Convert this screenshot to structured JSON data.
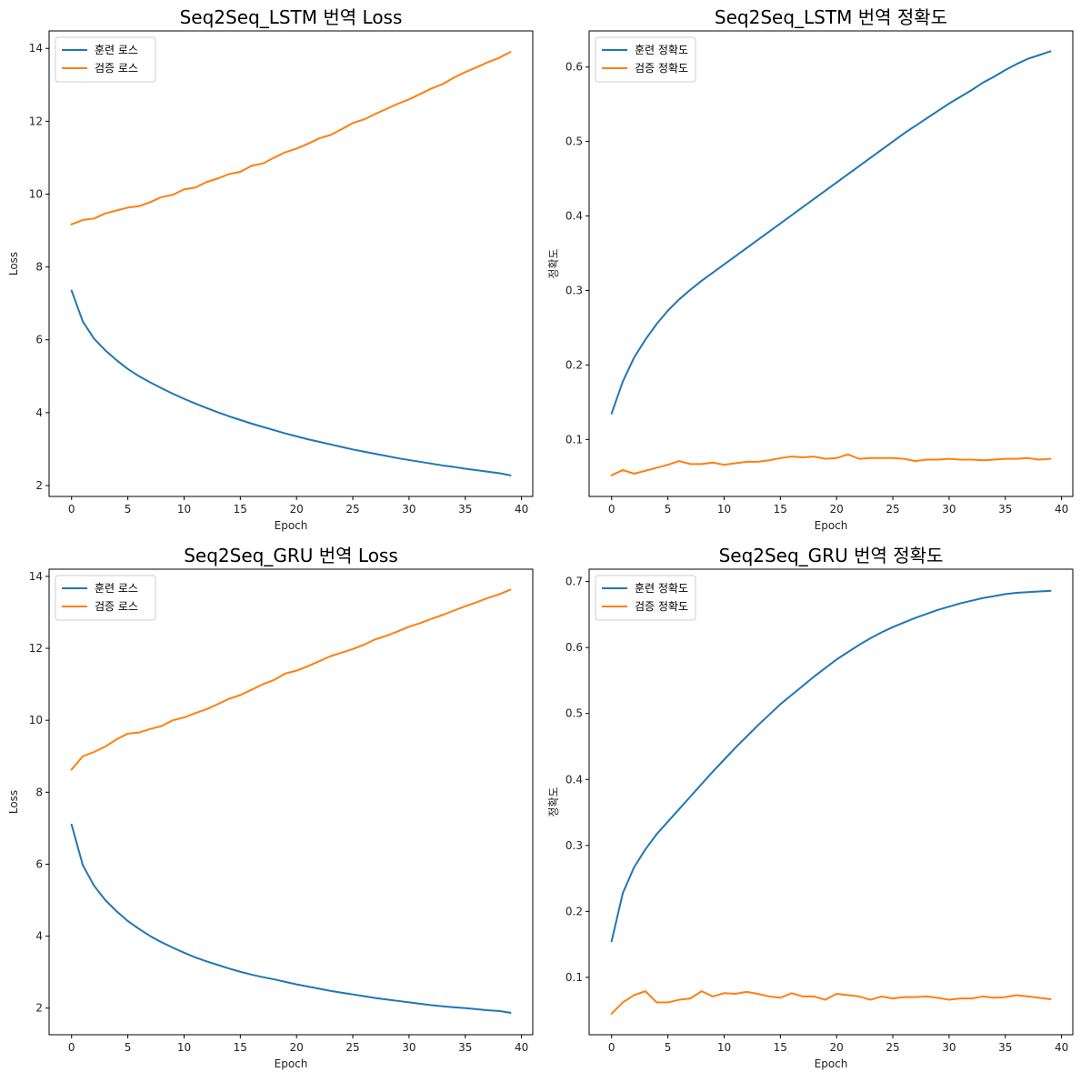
{
  "chart_data": [
    {
      "type": "line",
      "title": "Seq2Seq_LSTM 번역 Loss",
      "xlabel": "Epoch",
      "ylabel": "Loss",
      "xlim": [
        -2,
        41
      ],
      "ylim": [
        1.7,
        14.48
      ],
      "xticks": [
        0,
        5,
        10,
        15,
        20,
        25,
        30,
        35,
        40
      ],
      "yticks": [
        2,
        4,
        6,
        8,
        10,
        12,
        14
      ],
      "ytick_decimals": 0,
      "grid": false,
      "legend_position": "upper-left",
      "x": [
        0,
        1,
        2,
        3,
        4,
        5,
        6,
        7,
        8,
        9,
        10,
        11,
        12,
        13,
        14,
        15,
        16,
        17,
        18,
        19,
        20,
        21,
        22,
        23,
        24,
        25,
        26,
        27,
        28,
        29,
        30,
        31,
        32,
        33,
        34,
        35,
        36,
        37,
        38,
        39
      ],
      "series": [
        {
          "name": "훈련 로스",
          "color": "#1f77b4",
          "values": [
            7.35,
            6.5,
            6.03,
            5.71,
            5.44,
            5.2,
            5.0,
            4.83,
            4.67,
            4.52,
            4.38,
            4.25,
            4.13,
            4.01,
            3.9,
            3.8,
            3.7,
            3.61,
            3.52,
            3.43,
            3.35,
            3.27,
            3.2,
            3.13,
            3.06,
            2.99,
            2.93,
            2.87,
            2.81,
            2.75,
            2.7,
            2.65,
            2.6,
            2.55,
            2.51,
            2.46,
            2.42,
            2.38,
            2.34,
            2.28
          ]
        },
        {
          "name": "검증 로스",
          "color": "#ff7f0e",
          "values": [
            9.17,
            9.29,
            9.33,
            9.47,
            9.55,
            9.63,
            9.67,
            9.78,
            9.92,
            9.98,
            10.13,
            10.18,
            10.33,
            10.43,
            10.55,
            10.61,
            10.78,
            10.84,
            11.0,
            11.15,
            11.25,
            11.38,
            11.53,
            11.62,
            11.78,
            11.95,
            12.05,
            12.2,
            12.34,
            12.48,
            12.6,
            12.75,
            12.9,
            13.02,
            13.2,
            13.35,
            13.48,
            13.62,
            13.74,
            13.9
          ]
        }
      ]
    },
    {
      "type": "line",
      "title": "Seq2Seq_LSTM 번역 정확도",
      "xlabel": "Epoch",
      "ylabel": "정확도",
      "xlim": [
        -2,
        41
      ],
      "ylim": [
        0.0235,
        0.6485
      ],
      "xticks": [
        0,
        5,
        10,
        15,
        20,
        25,
        30,
        35,
        40
      ],
      "yticks": [
        0.1,
        0.2,
        0.3,
        0.4,
        0.5,
        0.6
      ],
      "ytick_decimals": 1,
      "grid": false,
      "legend_position": "upper-left",
      "x": [
        0,
        1,
        2,
        3,
        4,
        5,
        6,
        7,
        8,
        9,
        10,
        11,
        12,
        13,
        14,
        15,
        16,
        17,
        18,
        19,
        20,
        21,
        22,
        23,
        24,
        25,
        26,
        27,
        28,
        29,
        30,
        31,
        32,
        33,
        34,
        35,
        36,
        37,
        38,
        39
      ],
      "series": [
        {
          "name": "훈련 정확도",
          "color": "#1f77b4",
          "values": [
            0.135,
            0.178,
            0.21,
            0.234,
            0.255,
            0.273,
            0.288,
            0.301,
            0.313,
            0.324,
            0.335,
            0.346,
            0.357,
            0.368,
            0.379,
            0.39,
            0.401,
            0.412,
            0.423,
            0.434,
            0.445,
            0.456,
            0.467,
            0.478,
            0.489,
            0.5,
            0.511,
            0.521,
            0.531,
            0.541,
            0.551,
            0.56,
            0.569,
            0.579,
            0.587,
            0.596,
            0.604,
            0.611,
            0.616,
            0.621
          ]
        },
        {
          "name": "검증 정확도",
          "color": "#ff7f0e",
          "values": [
            0.052,
            0.059,
            0.054,
            0.058,
            0.062,
            0.066,
            0.071,
            0.067,
            0.067,
            0.069,
            0.066,
            0.068,
            0.07,
            0.07,
            0.072,
            0.075,
            0.077,
            0.076,
            0.077,
            0.074,
            0.075,
            0.08,
            0.074,
            0.075,
            0.075,
            0.075,
            0.074,
            0.071,
            0.073,
            0.073,
            0.074,
            0.073,
            0.073,
            0.072,
            0.073,
            0.074,
            0.074,
            0.075,
            0.073,
            0.074
          ]
        }
      ]
    },
    {
      "type": "line",
      "title": "Seq2Seq_GRU 번역 Loss",
      "xlabel": "Epoch",
      "ylabel": "Loss",
      "xlim": [
        -2,
        41
      ],
      "ylim": [
        1.26,
        14.2
      ],
      "xticks": [
        0,
        5,
        10,
        15,
        20,
        25,
        30,
        35,
        40
      ],
      "yticks": [
        2,
        4,
        6,
        8,
        10,
        12,
        14
      ],
      "ytick_decimals": 0,
      "grid": false,
      "legend_position": "upper-left",
      "x": [
        0,
        1,
        2,
        3,
        4,
        5,
        6,
        7,
        8,
        9,
        10,
        11,
        12,
        13,
        14,
        15,
        16,
        17,
        18,
        19,
        20,
        21,
        22,
        23,
        24,
        25,
        26,
        27,
        28,
        29,
        30,
        31,
        32,
        33,
        34,
        35,
        36,
        37,
        38,
        39
      ],
      "series": [
        {
          "name": "훈련 로스",
          "color": "#1f77b4",
          "values": [
            7.1,
            5.97,
            5.4,
            5.0,
            4.69,
            4.42,
            4.2,
            4.0,
            3.83,
            3.68,
            3.54,
            3.41,
            3.3,
            3.2,
            3.1,
            3.01,
            2.93,
            2.86,
            2.8,
            2.73,
            2.66,
            2.6,
            2.54,
            2.48,
            2.43,
            2.38,
            2.33,
            2.28,
            2.24,
            2.2,
            2.16,
            2.12,
            2.08,
            2.05,
            2.02,
            2.0,
            1.97,
            1.94,
            1.92,
            1.87
          ]
        },
        {
          "name": "검증 로스",
          "color": "#ff7f0e",
          "values": [
            8.63,
            9.0,
            9.12,
            9.27,
            9.47,
            9.63,
            9.66,
            9.76,
            9.84,
            10.0,
            10.08,
            10.2,
            10.31,
            10.45,
            10.6,
            10.7,
            10.85,
            11.0,
            11.12,
            11.3,
            11.38,
            11.5,
            11.64,
            11.78,
            11.88,
            11.98,
            12.1,
            12.25,
            12.35,
            12.47,
            12.6,
            12.7,
            12.82,
            12.93,
            13.05,
            13.17,
            13.28,
            13.4,
            13.5,
            13.63
          ]
        }
      ]
    },
    {
      "type": "line",
      "title": "Seq2Seq_GRU 번역 정확도",
      "xlabel": "Epoch",
      "ylabel": "정확도",
      "xlim": [
        -2,
        41
      ],
      "ylim": [
        0.013,
        0.7188
      ],
      "xticks": [
        0,
        5,
        10,
        15,
        20,
        25,
        30,
        35,
        40
      ],
      "yticks": [
        0.1,
        0.2,
        0.3,
        0.4,
        0.5,
        0.6,
        0.7
      ],
      "ytick_decimals": 1,
      "grid": false,
      "legend_position": "upper-left",
      "x": [
        0,
        1,
        2,
        3,
        4,
        5,
        6,
        7,
        8,
        9,
        10,
        11,
        12,
        13,
        14,
        15,
        16,
        17,
        18,
        19,
        20,
        21,
        22,
        23,
        24,
        25,
        26,
        27,
        28,
        29,
        30,
        31,
        32,
        33,
        34,
        35,
        36,
        37,
        38,
        39
      ],
      "series": [
        {
          "name": "훈련 정확도",
          "color": "#1f77b4",
          "values": [
            0.155,
            0.228,
            0.267,
            0.294,
            0.317,
            0.336,
            0.355,
            0.374,
            0.393,
            0.412,
            0.43,
            0.448,
            0.465,
            0.482,
            0.498,
            0.514,
            0.528,
            0.542,
            0.556,
            0.569,
            0.582,
            0.593,
            0.604,
            0.614,
            0.623,
            0.631,
            0.638,
            0.645,
            0.651,
            0.657,
            0.662,
            0.667,
            0.671,
            0.675,
            0.678,
            0.681,
            0.683,
            0.684,
            0.685,
            0.686
          ]
        },
        {
          "name": "검증 정확도",
          "color": "#ff7f0e",
          "values": [
            0.045,
            0.062,
            0.073,
            0.079,
            0.062,
            0.062,
            0.066,
            0.068,
            0.079,
            0.071,
            0.076,
            0.075,
            0.078,
            0.075,
            0.071,
            0.069,
            0.076,
            0.071,
            0.071,
            0.066,
            0.075,
            0.073,
            0.071,
            0.066,
            0.071,
            0.068,
            0.07,
            0.07,
            0.071,
            0.069,
            0.066,
            0.068,
            0.068,
            0.071,
            0.069,
            0.07,
            0.073,
            0.071,
            0.069,
            0.067
          ]
        }
      ]
    }
  ]
}
